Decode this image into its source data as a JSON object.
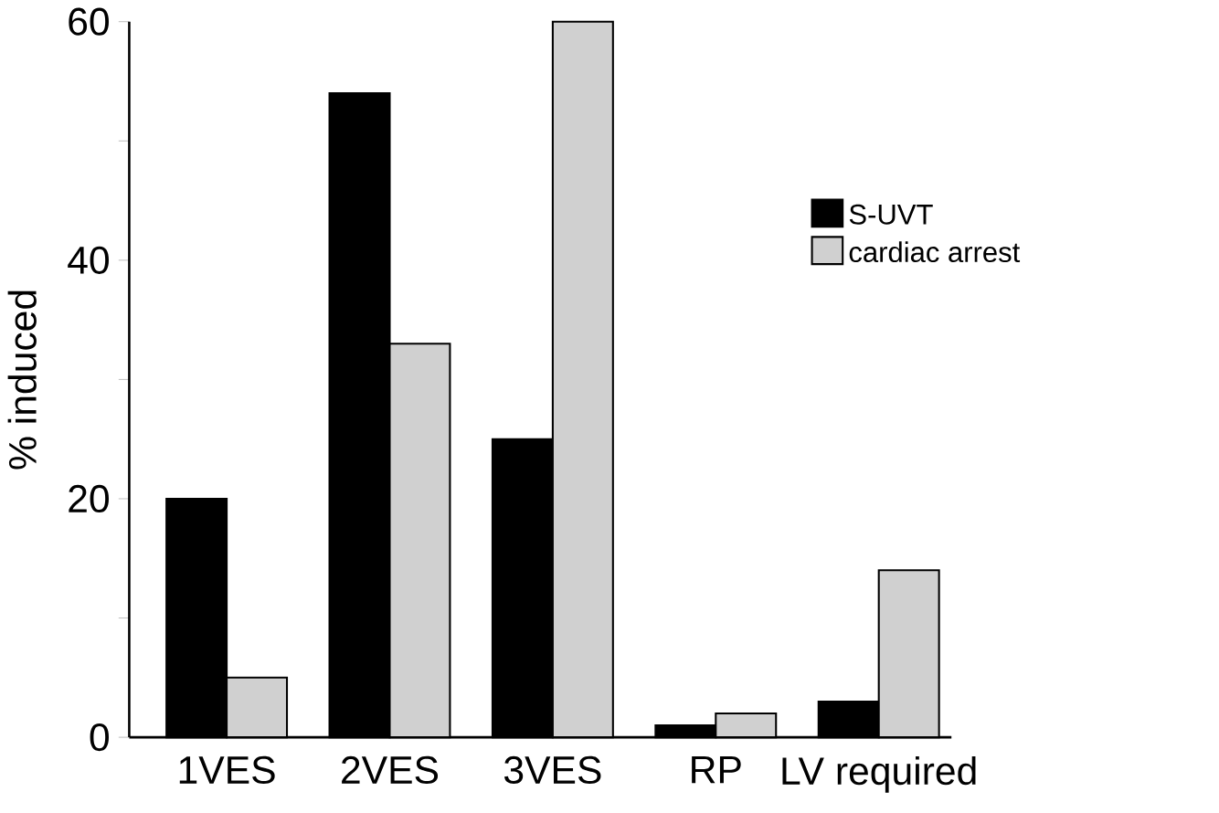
{
  "chart_data": {
    "type": "bar",
    "ylabel": "% induced",
    "categories": [
      "1VES",
      "2VES",
      "3VES",
      "RP",
      "LV required"
    ],
    "series": [
      {
        "name": "S-UVT",
        "color": "#000000",
        "values": [
          20,
          54,
          25,
          1,
          3
        ]
      },
      {
        "name": "cardiac arrest",
        "color": "#d0d0d0",
        "values": [
          5,
          33,
          60,
          2,
          14
        ]
      }
    ],
    "ylim": [
      0,
      60
    ],
    "yticks": [
      0,
      {
        "value": 10,
        "label": null
      },
      20,
      {
        "value": 30,
        "label": null
      },
      40,
      {
        "value": 50,
        "label": null
      },
      60
    ],
    "grid": false,
    "legend": "right"
  }
}
